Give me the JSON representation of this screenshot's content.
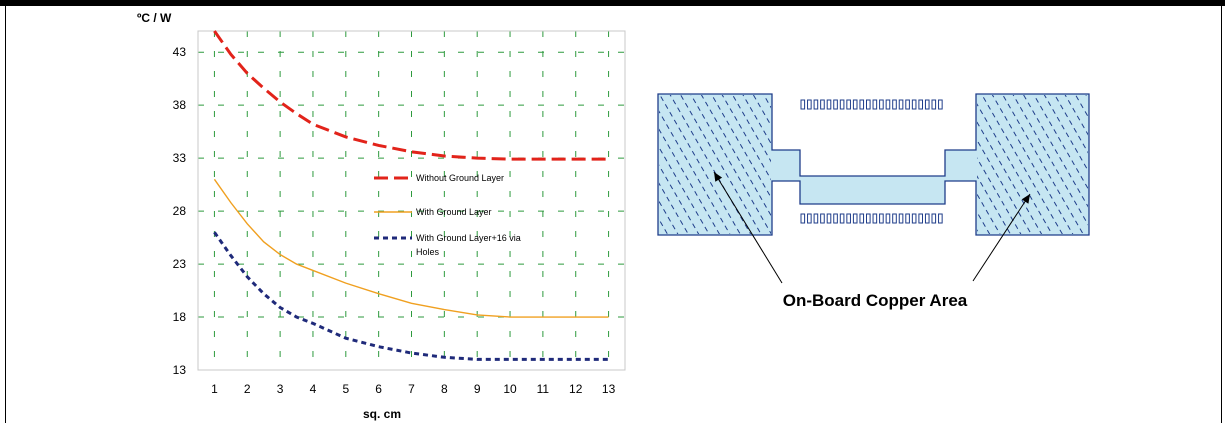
{
  "chart_data": {
    "type": "line",
    "title": "",
    "ylabel": "ºC / W",
    "xlabel": "sq. cm",
    "xlim": [
      0.5,
      13.5
    ],
    "ylim": [
      13,
      45
    ],
    "x_ticks": [
      1,
      2,
      3,
      4,
      5,
      6,
      7,
      8,
      9,
      10,
      11,
      12,
      13
    ],
    "y_ticks": [
      13,
      18,
      23,
      28,
      33,
      38,
      43
    ],
    "grid": true,
    "legend_position": "center-right",
    "series": [
      {
        "name": "Without Ground Layer",
        "color": "#e2231a",
        "style": "dashed",
        "x": [
          1,
          1.5,
          2,
          2.5,
          3,
          3.5,
          4,
          5,
          6,
          7,
          8,
          9,
          10,
          11,
          12,
          13
        ],
        "values": [
          45,
          42.8,
          41,
          39.6,
          38.3,
          37.2,
          36.2,
          35,
          34.2,
          33.6,
          33.2,
          33,
          32.9,
          32.9,
          32.9,
          32.9
        ]
      },
      {
        "name": "With Ground Layer",
        "color": "#f0a020",
        "style": "solid",
        "x": [
          1,
          1.5,
          2,
          2.5,
          3,
          3.5,
          4,
          5,
          6,
          7,
          8,
          9,
          10,
          11,
          12,
          13
        ],
        "values": [
          31,
          28.8,
          26.8,
          25.1,
          23.9,
          23,
          22.4,
          21.2,
          20.2,
          19.3,
          18.7,
          18.2,
          18,
          18,
          18,
          18
        ]
      },
      {
        "name": "With Ground Layer+16 via Holes",
        "color": "#1f2a7a",
        "style": "dotted",
        "x": [
          1,
          1.5,
          2,
          2.5,
          3,
          3.5,
          4,
          5,
          6,
          7,
          8,
          9,
          10,
          11,
          12,
          13
        ],
        "values": [
          26,
          23.8,
          21.8,
          20.2,
          18.9,
          18,
          17.4,
          16,
          15.2,
          14.6,
          14.2,
          14,
          14,
          14,
          14,
          14
        ]
      }
    ],
    "legend_lines": [
      [
        "Without Ground Layer"
      ],
      [
        "With Ground Layer"
      ],
      [
        "With Ground Layer+16 via",
        "Holes"
      ]
    ]
  },
  "diagram": {
    "label": "On-Board Copper Area",
    "fill_color": "#c6e6f2",
    "stroke_color": "#1f3d8a"
  }
}
